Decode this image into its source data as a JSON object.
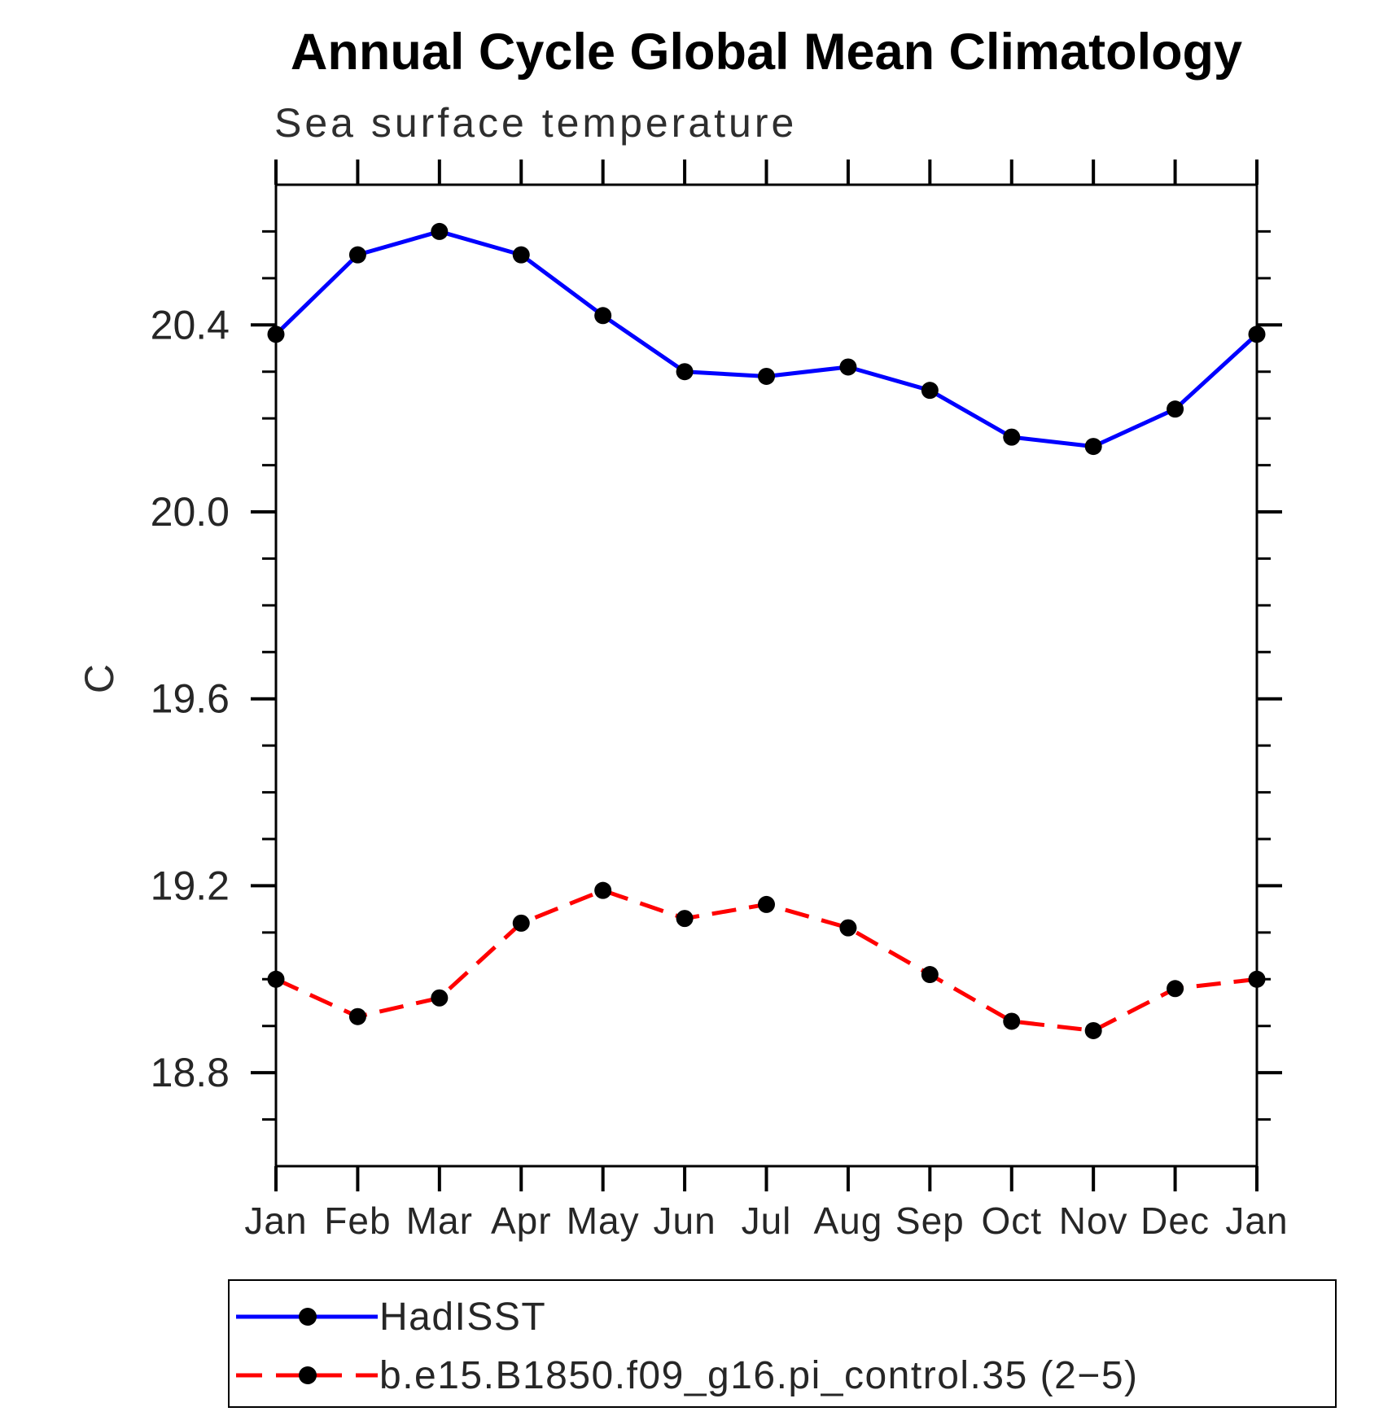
{
  "chart_data": {
    "type": "line",
    "title": "Annual Cycle Global Mean Climatology",
    "subtitle": "Sea surface temperature",
    "xlabel": "",
    "ylabel": "C",
    "x_categories": [
      "Jan",
      "Feb",
      "Mar",
      "Apr",
      "May",
      "Jun",
      "Jul",
      "Aug",
      "Sep",
      "Oct",
      "Nov",
      "Dec",
      "Jan"
    ],
    "ylim": [
      18.6,
      20.7
    ],
    "ytick_major": [
      18.8,
      19.2,
      19.6,
      20.0,
      20.4
    ],
    "ytick_major_labels": [
      "18.8",
      "19.2",
      "19.6",
      "20.0",
      "20.4"
    ],
    "ytick_minor_step": 0.1,
    "grid": false,
    "legend_position": "bottom-left-box",
    "axis_color": "#000000",
    "text_color": "#262626",
    "series": [
      {
        "name": "HadISST",
        "color": "#0000ff",
        "style": "solid",
        "marker": "circle",
        "marker_color": "#000000",
        "values": [
          20.38,
          20.55,
          20.6,
          20.55,
          20.42,
          20.3,
          20.29,
          20.31,
          20.26,
          20.16,
          20.14,
          20.22,
          20.38
        ]
      },
      {
        "name": "b.e15.B1850.f09_g16.pi_control.35 (2−5)",
        "color": "#ff0000",
        "style": "dashed",
        "marker": "circle",
        "marker_color": "#000000",
        "values": [
          19.0,
          18.92,
          18.96,
          19.12,
          19.19,
          19.13,
          19.16,
          19.11,
          19.01,
          18.91,
          18.89,
          18.98,
          19.0
        ]
      }
    ]
  }
}
